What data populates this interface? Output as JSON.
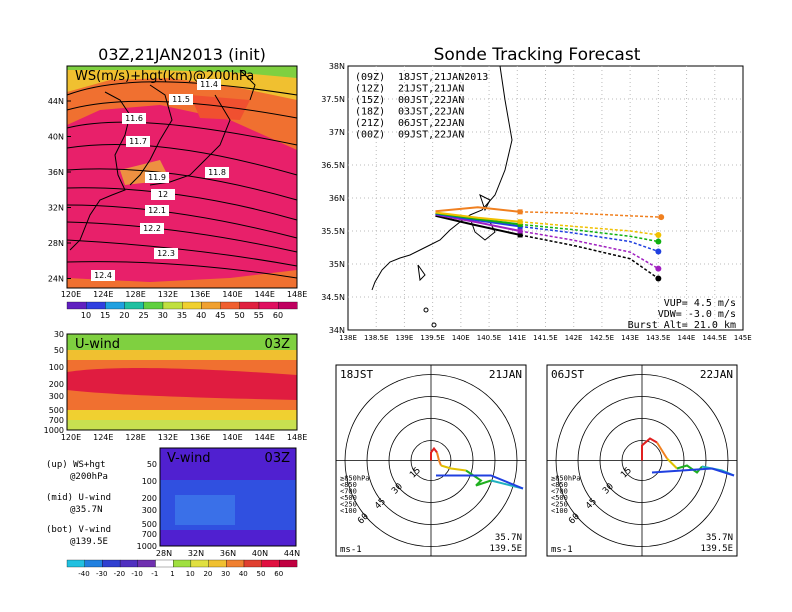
{
  "titles": {
    "left": "03Z,21JAN2013 (init)",
    "right": "Sonde Tracking Forecast"
  },
  "top_panel": {
    "label": "WS(m/s)+hgt(km)@200hPa",
    "lat_ticks": [
      "44N",
      "40N",
      "36N",
      "32N",
      "28N",
      "24N"
    ],
    "lon_ticks": [
      "120E",
      "124E",
      "128E",
      "132E",
      "136E",
      "140E",
      "144E",
      "148E"
    ],
    "contour_labels": [
      "11.4",
      "11.5",
      "11.6",
      "11.7",
      "11.8",
      "11.9",
      "12",
      "12.1",
      "12.2",
      "12.3",
      "12.4"
    ],
    "colorbar": [
      "10",
      "15",
      "20",
      "25",
      "30",
      "35",
      "40",
      "45",
      "50",
      "55",
      "60"
    ]
  },
  "u_panel": {
    "label": "U-wind",
    "time": "03Z",
    "pressure_ticks": [
      "30",
      "50",
      "100",
      "200",
      "300",
      "500",
      "700",
      "1000"
    ],
    "lon_ticks": [
      "120E",
      "124E",
      "128E",
      "132E",
      "136E",
      "140E",
      "144E",
      "148E"
    ]
  },
  "v_panel": {
    "label": "V-wind",
    "time": "03Z",
    "pressure_ticks": [
      "50",
      "100",
      "200",
      "300",
      "500",
      "700",
      "1000"
    ],
    "lat_ticks": [
      "28N",
      "32N",
      "36N",
      "40N",
      "44N"
    ],
    "colorbar": [
      "-40",
      "-30",
      "-20",
      "-10",
      "-1",
      "1",
      "10",
      "20",
      "30",
      "40",
      "50",
      "60"
    ]
  },
  "legend_notes": [
    {
      "a": "(up) WS+hgt",
      "b": "@200hPa"
    },
    {
      "a": "(mid) U-wind",
      "b": "@35.7N"
    },
    {
      "a": "(bot) V-wind",
      "b": "@139.5E"
    }
  ],
  "track_map": {
    "lat_ticks": [
      "38N",
      "37.5N",
      "37N",
      "36.5N",
      "36N",
      "35.5N",
      "35N",
      "34.5N",
      "34N"
    ],
    "lon_ticks": [
      "138E",
      "138.5E",
      "139E",
      "139.5E",
      "140E",
      "140.5E",
      "141E",
      "141.5E",
      "142E",
      "142.5E",
      "143E",
      "143.5E",
      "144E",
      "144.5E",
      "145E"
    ],
    "legend": [
      {
        "code": "(09Z)",
        "local": "18JST,21JAN2013",
        "color": "#000000"
      },
      {
        "code": "(12Z)",
        "local": "21JST,21JAN",
        "color": "#a020c0"
      },
      {
        "code": "(15Z)",
        "local": "00JST,22JAN",
        "color": "#2040e0"
      },
      {
        "code": "(18Z)",
        "local": "03JST,22JAN",
        "color": "#10b010"
      },
      {
        "code": "(21Z)",
        "local": "06JST,22JAN",
        "color": "#f0c000"
      },
      {
        "code": "(00Z)",
        "local": "09JST,22JAN",
        "color": "#f08020"
      }
    ],
    "params": [
      "VUP= 4.5 m/s",
      "VDW= -3.0 m/s",
      "Burst Alt= 21.0 km"
    ]
  },
  "hodographs": [
    {
      "time": "18JST",
      "date": "21JAN",
      "rings": [
        "15",
        "30",
        "45",
        "60"
      ],
      "unit": "ms-1",
      "lat": "35.7N",
      "lon": "139.5E"
    },
    {
      "time": "06JST",
      "date": "22JAN",
      "rings": [
        "15",
        "30",
        "45",
        "60"
      ],
      "unit": "ms-1",
      "lat": "35.7N",
      "lon": "139.5E"
    }
  ],
  "hodo_legend": [
    {
      "text": "≥850hPa",
      "color": "#e02020"
    },
    {
      "text": "<850",
      "color": "#f08020"
    },
    {
      "text": "<700",
      "color": "#e0c000"
    },
    {
      "text": "<500",
      "color": "#20b020"
    },
    {
      "text": "<250",
      "color": "#20b0c0"
    },
    {
      "text": "<100",
      "color": "#2040e0"
    }
  ],
  "chart_data": [
    {
      "type": "line",
      "title": "Sonde Tracking Forecast",
      "xlabel": "",
      "ylabel": "",
      "xlim": [
        138,
        145
      ],
      "ylim": [
        34,
        38
      ],
      "series": [
        {
          "name": "(09Z) 18JST,21JAN2013",
          "color": "#000000",
          "points": [
            [
              139.55,
              35.73
            ],
            [
              140.2,
              35.6
            ],
            [
              141.05,
              35.44
            ],
            [
              142.0,
              35.28
            ],
            [
              143.0,
              35.08
            ],
            [
              143.5,
              34.78
            ]
          ]
        },
        {
          "name": "(12Z) 21JST,21JAN",
          "color": "#a020c0",
          "points": [
            [
              139.55,
              35.75
            ],
            [
              140.3,
              35.63
            ],
            [
              141.05,
              35.5
            ],
            [
              142.0,
              35.36
            ],
            [
              143.0,
              35.18
            ],
            [
              143.5,
              34.93
            ]
          ]
        },
        {
          "name": "(15Z) 00JST,22JAN",
          "color": "#2040e0",
          "points": [
            [
              139.55,
              35.76
            ],
            [
              140.3,
              35.66
            ],
            [
              141.05,
              35.57
            ],
            [
              142.0,
              35.47
            ],
            [
              143.0,
              35.34
            ],
            [
              143.5,
              35.19
            ]
          ]
        },
        {
          "name": "(18Z) 03JST,22JAN",
          "color": "#10b010",
          "points": [
            [
              139.55,
              35.77
            ],
            [
              140.3,
              35.68
            ],
            [
              141.05,
              35.6
            ],
            [
              142.0,
              35.52
            ],
            [
              143.0,
              35.42
            ],
            [
              143.5,
              35.34
            ]
          ]
        },
        {
          "name": "(21Z) 06JST,22JAN",
          "color": "#f0c000",
          "points": [
            [
              139.55,
              35.78
            ],
            [
              140.3,
              35.7
            ],
            [
              141.05,
              35.64
            ],
            [
              142.0,
              35.57
            ],
            [
              143.0,
              35.5
            ],
            [
              143.5,
              35.44
            ]
          ]
        },
        {
          "name": "(00Z) 09JST,22JAN",
          "color": "#f08020",
          "points": [
            [
              139.55,
              35.8
            ],
            [
              140.3,
              35.86
            ],
            [
              141.05,
              35.79
            ],
            [
              142.0,
              35.77
            ],
            [
              143.0,
              35.73
            ],
            [
              143.55,
              35.71
            ]
          ]
        }
      ]
    }
  ]
}
